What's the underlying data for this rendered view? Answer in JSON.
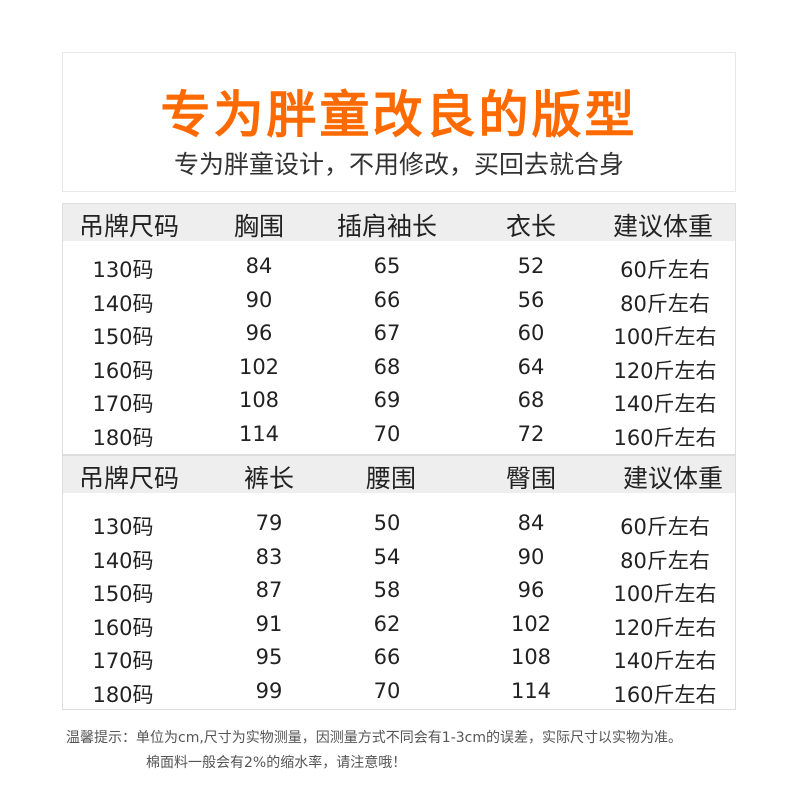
{
  "hero": {
    "title": "专为胖童改良的版型",
    "subtitle": "专为胖童设计，不用修改，买回去就合身",
    "title_color": "#ff6a00"
  },
  "top_table": {
    "headers": [
      "吊牌尺码",
      "胸围",
      "插肩袖长",
      "衣长",
      "建议体重"
    ],
    "rows": [
      [
        "130码",
        "84",
        "65",
        "52",
        "60斤左右"
      ],
      [
        "140码",
        "90",
        "66",
        "56",
        "80斤左右"
      ],
      [
        "150码",
        "96",
        "67",
        "60",
        "100斤左右"
      ],
      [
        "160码",
        "102",
        "68",
        "64",
        "120斤左右"
      ],
      [
        "170码",
        "108",
        "69",
        "68",
        "140斤左右"
      ],
      [
        "180码",
        "114",
        "70",
        "72",
        "160斤左右"
      ]
    ]
  },
  "bottom_table": {
    "headers": [
      "吊牌尺码",
      "裤长",
      "腰围",
      "臀围",
      "建议体重"
    ],
    "rows": [
      [
        "130码",
        "79",
        "50",
        "84",
        "60斤左右"
      ],
      [
        "140码",
        "83",
        "54",
        "90",
        "80斤左右"
      ],
      [
        "150码",
        "87",
        "58",
        "96",
        "100斤左右"
      ],
      [
        "160码",
        "91",
        "62",
        "102",
        "120斤左右"
      ],
      [
        "170码",
        "95",
        "66",
        "108",
        "140斤左右"
      ],
      [
        "180码",
        "99",
        "70",
        "114",
        "160斤左右"
      ]
    ]
  },
  "notes": {
    "line1": "温馨提示：单位为cm,尺寸为实物测量，因测量方式不同会有1-3cm的误差，实际尺寸以实物为准。",
    "line2": "棉面料一般会有2%的缩水率，请注意哦！"
  }
}
